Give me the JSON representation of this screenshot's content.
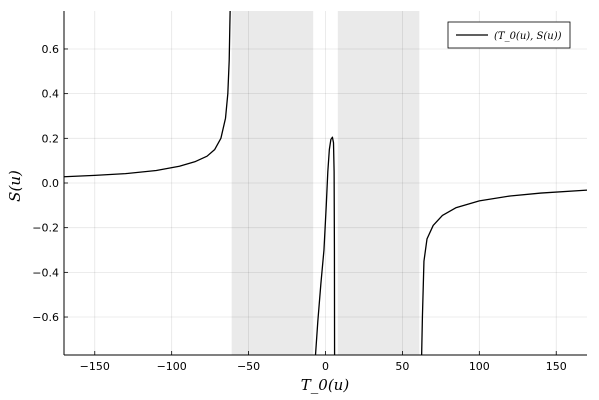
{
  "chart_data": {
    "type": "line",
    "xlabel": "T_0(u)",
    "ylabel": "S(u)",
    "xlim": [
      -170,
      170
    ],
    "ylim": [
      -0.77,
      0.77
    ],
    "x_ticks": [
      -150,
      -100,
      -50,
      0,
      50,
      100,
      150
    ],
    "x_tick_labels": [
      "−150",
      "−100",
      "−50",
      "0",
      "50",
      "100",
      "150"
    ],
    "y_ticks": [
      -0.6,
      -0.4,
      -0.2,
      0.0,
      0.2,
      0.4,
      0.6
    ],
    "y_tick_labels": [
      "−0.6",
      "−0.4",
      "−0.2",
      "0.0",
      "0.2",
      "0.4",
      "0.6"
    ],
    "grid": true,
    "legend_position": "top-right",
    "shaded_regions": [
      {
        "x": [
          -61,
          -8
        ],
        "color": "#d9d9d9"
      },
      {
        "x": [
          8,
          61
        ],
        "color": "#d9d9d9"
      }
    ],
    "series": [
      {
        "name": "(T_0(u), S(u))",
        "color": "#000000",
        "segments": [
          [
            [
              -170,
              0.028
            ],
            [
              -150,
              0.034
            ],
            [
              -130,
              0.042
            ],
            [
              -110,
              0.056
            ],
            [
              -95,
              0.075
            ],
            [
              -85,
              0.095
            ],
            [
              -77,
              0.12
            ],
            [
              -72,
              0.15
            ],
            [
              -68,
              0.2
            ],
            [
              -65,
              0.29
            ],
            [
              -63.5,
              0.4
            ],
            [
              -62.6,
              0.55
            ],
            [
              -62.2,
              0.7
            ],
            [
              -62.0,
              0.77
            ]
          ],
          [
            [
              -6.5,
              -0.77
            ],
            [
              -5,
              -0.62
            ],
            [
              -3,
              -0.45
            ],
            [
              -1,
              -0.3
            ],
            [
              0.5,
              -0.1
            ],
            [
              1.5,
              0.05
            ],
            [
              2.5,
              0.15
            ],
            [
              3.5,
              0.195
            ],
            [
              4.5,
              0.205
            ],
            [
              5.2,
              0.18
            ],
            [
              5.6,
              0.05
            ],
            [
              5.8,
              -0.3
            ],
            [
              5.9,
              -0.77
            ]
          ],
          [
            [
              62.5,
              -0.77
            ],
            [
              63,
              -0.6
            ],
            [
              64,
              -0.35
            ],
            [
              66,
              -0.25
            ],
            [
              70,
              -0.19
            ],
            [
              76,
              -0.145
            ],
            [
              85,
              -0.11
            ],
            [
              100,
              -0.08
            ],
            [
              120,
              -0.058
            ],
            [
              140,
              -0.045
            ],
            [
              170,
              -0.032
            ]
          ]
        ]
      }
    ]
  }
}
